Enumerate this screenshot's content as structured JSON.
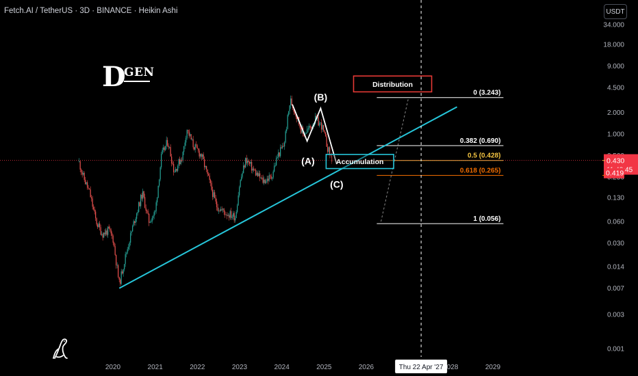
{
  "header": {
    "title": "Fetch.AI / TetherUS · 3D · BINANCE · Heikin Ashi",
    "currency_button": "USDT"
  },
  "logo": {
    "initial": "D",
    "text": "GEN"
  },
  "colors": {
    "background": "#000000",
    "trendline": "#26c6da",
    "candle_up": "#26a69a",
    "candle_down": "#ef5350",
    "fib_white": "#ffffff",
    "fib_yellow": "#f5c542",
    "fib_orange": "#ef6c00",
    "price_label": "#f23645",
    "distribution_box": "#e53935",
    "accumulation_box": "#26c6da"
  },
  "chart_data": {
    "type": "candlestick",
    "scale": "log",
    "y_ticks": [
      "34.000",
      "18.000",
      "9.000",
      "4.500",
      "2.000",
      "1.000",
      "0.500",
      "0.250",
      "0.130",
      "0.060",
      "0.030",
      "0.014",
      "0.007",
      "0.003",
      "0.001"
    ],
    "x_ticks": [
      "2020",
      "2021",
      "2022",
      "2023",
      "2024",
      "2025",
      "2026",
      "2027",
      "2028",
      "2029"
    ],
    "x_range": [
      2019.0,
      2030.0
    ],
    "price_path": [
      {
        "x": 2019.2,
        "y": 0.4
      },
      {
        "x": 2019.3,
        "y": 0.25
      },
      {
        "x": 2019.45,
        "y": 0.15
      },
      {
        "x": 2019.6,
        "y": 0.06
      },
      {
        "x": 2019.75,
        "y": 0.04
      },
      {
        "x": 2019.9,
        "y": 0.045
      },
      {
        "x": 2020.0,
        "y": 0.035
      },
      {
        "x": 2020.15,
        "y": 0.008
      },
      {
        "x": 2020.3,
        "y": 0.02
      },
      {
        "x": 2020.5,
        "y": 0.06
      },
      {
        "x": 2020.7,
        "y": 0.15
      },
      {
        "x": 2020.85,
        "y": 0.06
      },
      {
        "x": 2021.0,
        "y": 0.08
      },
      {
        "x": 2021.15,
        "y": 0.5
      },
      {
        "x": 2021.3,
        "y": 0.8
      },
      {
        "x": 2021.45,
        "y": 0.3
      },
      {
        "x": 2021.65,
        "y": 0.5
      },
      {
        "x": 2021.75,
        "y": 1.2
      },
      {
        "x": 2021.9,
        "y": 0.7
      },
      {
        "x": 2022.1,
        "y": 0.5
      },
      {
        "x": 2022.3,
        "y": 0.2
      },
      {
        "x": 2022.45,
        "y": 0.1
      },
      {
        "x": 2022.65,
        "y": 0.08
      },
      {
        "x": 2022.9,
        "y": 0.07
      },
      {
        "x": 2023.0,
        "y": 0.2
      },
      {
        "x": 2023.15,
        "y": 0.45
      },
      {
        "x": 2023.35,
        "y": 0.3
      },
      {
        "x": 2023.55,
        "y": 0.22
      },
      {
        "x": 2023.75,
        "y": 0.25
      },
      {
        "x": 2023.9,
        "y": 0.5
      },
      {
        "x": 2024.05,
        "y": 0.7
      },
      {
        "x": 2024.2,
        "y": 3.0
      },
      {
        "x": 2024.35,
        "y": 1.8
      },
      {
        "x": 2024.5,
        "y": 1.0
      },
      {
        "x": 2024.65,
        "y": 1.2
      },
      {
        "x": 2024.8,
        "y": 1.6
      },
      {
        "x": 2024.95,
        "y": 1.3
      },
      {
        "x": 2025.1,
        "y": 0.6
      },
      {
        "x": 2025.2,
        "y": 0.419
      }
    ],
    "elliott_path": [
      {
        "x": 2024.25,
        "y": 2.6
      },
      {
        "x": 2024.6,
        "y": 0.8
      },
      {
        "x": 2024.92,
        "y": 2.3
      },
      {
        "x": 2025.3,
        "y": 0.38
      }
    ],
    "trendline": [
      {
        "x": 2020.15,
        "y": 0.007
      },
      {
        "x": 2028.15,
        "y": 2.4
      }
    ],
    "projection": [
      {
        "x": 2026.35,
        "y": 0.06
      },
      {
        "x": 2027.0,
        "y": 3.2
      }
    ],
    "vertical_marker_x": 2027.3,
    "fib_start_x": 2026.25,
    "fib_end_x": 2029.25,
    "fib_levels": [
      {
        "label": "0 (3.243)",
        "price": 3.243,
        "color": "#ffffff"
      },
      {
        "label": "0.382 (0.690)",
        "price": 0.69,
        "color": "#ffffff"
      },
      {
        "label": "0.5 (0.428)",
        "price": 0.428,
        "color": "#f5c542"
      },
      {
        "label": "0.618 (0.265)",
        "price": 0.265,
        "color": "#ef6c00"
      },
      {
        "label": "1 (0.056)",
        "price": 0.056,
        "color": "#ffffff"
      }
    ],
    "current_price": {
      "value": 0.43,
      "label": "0.430",
      "countdown": "11:48:45"
    },
    "low_label": {
      "value": 0.419,
      "label": "0.419"
    },
    "date_marker": "Thu 22 Apr '27",
    "annotations": [
      {
        "text": "(A)",
        "x": 2024.62,
        "y": 0.42
      },
      {
        "text": "(B)",
        "x": 2024.92,
        "y": 3.3
      },
      {
        "text": "(C)",
        "x": 2025.3,
        "y": 0.2
      }
    ],
    "zones": [
      {
        "label": "Distribution",
        "x0": 2025.7,
        "x1": 2027.55,
        "y0": 3.9,
        "y1": 6.5,
        "color": "#e53935"
      },
      {
        "label": "Accumulation",
        "x0": 2025.05,
        "x1": 2026.65,
        "y0": 0.33,
        "y1": 0.52,
        "color": "#26c6da"
      }
    ]
  }
}
